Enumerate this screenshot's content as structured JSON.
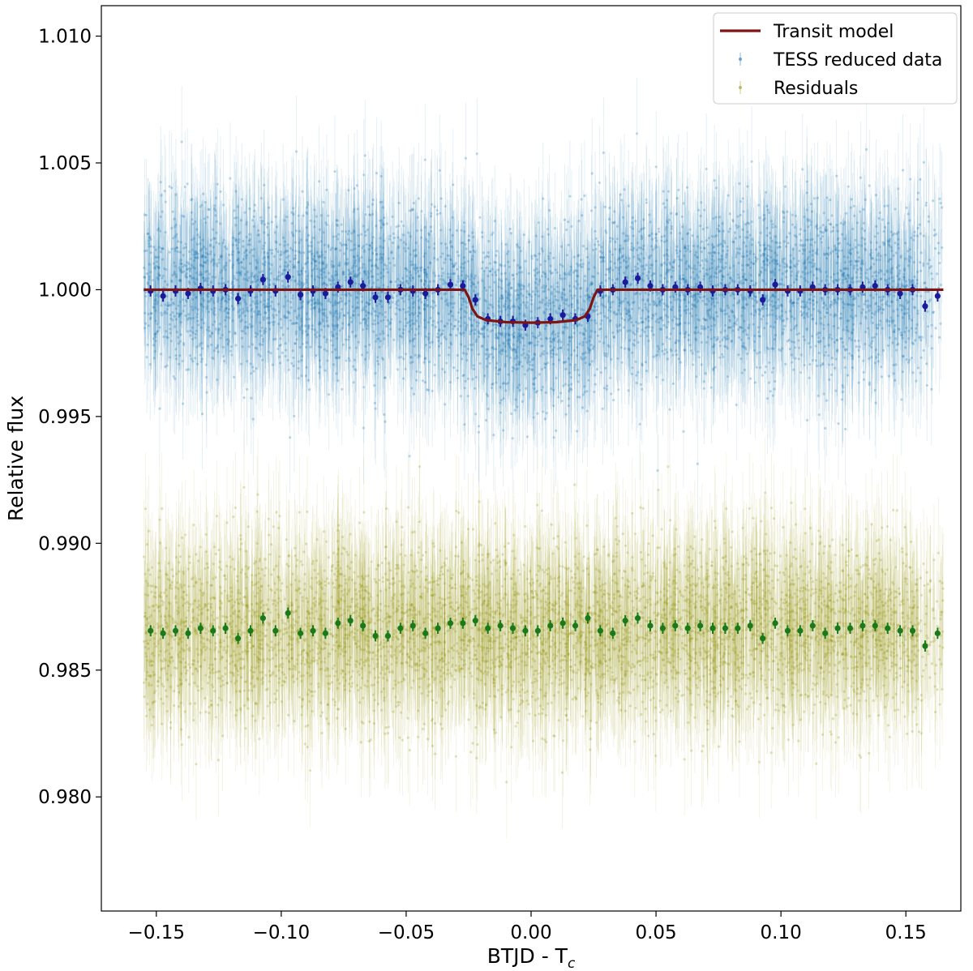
{
  "chart_data": {
    "type": "scatter",
    "title": "",
    "xlabel": "BTJD - T",
    "xlabel_subscript": "c",
    "ylabel": "Relative flux",
    "xlim": [
      -0.172,
      0.172
    ],
    "ylim": [
      0.9755,
      1.0112
    ],
    "grid": false,
    "legend_position": "top-right",
    "x_ticks": [
      -0.15,
      -0.1,
      -0.05,
      0.0,
      0.05,
      0.1,
      0.15
    ],
    "x_tick_labels": [
      "−0.15",
      "−0.10",
      "−0.05",
      "0.00",
      "0.05",
      "0.10",
      "0.15"
    ],
    "y_ticks": [
      0.98,
      0.985,
      0.99,
      0.995,
      1.0,
      1.005,
      1.01
    ],
    "y_tick_labels": [
      "0.980",
      "0.985",
      "0.990",
      "0.995",
      "1.000",
      "1.005",
      "1.010"
    ],
    "legend": [
      {
        "label": "Transit model",
        "kind": "line",
        "color": "#7f1414"
      },
      {
        "label": "TESS reduced data",
        "kind": "errorpoint",
        "color": "#1f77b4"
      },
      {
        "label": "Residuals",
        "kind": "errorpoint",
        "color": "#9a9a1e"
      }
    ],
    "series": [
      {
        "name": "TESS reduced data",
        "color": "#1f77b4",
        "x_range": [
          -0.155,
          0.155
        ],
        "sparse_x_range": [
          0.155,
          0.165
        ],
        "center": 1.0,
        "scatter_sigma": 0.0017,
        "error_bar": 0.0022
      },
      {
        "name": "Residuals",
        "color": "#9a9a1e",
        "x_range": [
          -0.155,
          0.155
        ],
        "sparse_x_range": [
          0.155,
          0.165
        ],
        "center": 0.9866,
        "scatter_sigma": 0.0017,
        "error_bar": 0.0022
      },
      {
        "name": "Binned data",
        "color": "#1a1a9c",
        "x": [
          -0.1523,
          -0.1473,
          -0.1423,
          -0.1373,
          -0.1323,
          -0.1273,
          -0.1223,
          -0.1173,
          -0.1123,
          -0.1073,
          -0.1023,
          -0.0973,
          -0.0923,
          -0.0873,
          -0.0823,
          -0.0773,
          -0.0723,
          -0.0673,
          -0.0623,
          -0.0573,
          -0.0523,
          -0.0473,
          -0.0423,
          -0.0373,
          -0.0323,
          -0.0273,
          -0.0223,
          -0.0173,
          -0.0123,
          -0.0073,
          -0.0023,
          0.0027,
          0.0077,
          0.0127,
          0.0177,
          0.0227,
          0.0277,
          0.0327,
          0.0377,
          0.0427,
          0.0477,
          0.0527,
          0.0577,
          0.0627,
          0.0677,
          0.0727,
          0.0777,
          0.0827,
          0.0877,
          0.0927,
          0.0977,
          0.1027,
          0.1077,
          0.1127,
          0.1177,
          0.1227,
          0.1277,
          0.1327,
          0.1377,
          0.1427,
          0.1477,
          0.1527,
          0.1577,
          0.1627
        ],
        "y": [
          0.99995,
          0.99975,
          0.99995,
          0.99985,
          1.00005,
          0.99995,
          1.0,
          0.99965,
          0.99995,
          1.0004,
          0.99995,
          1.0005,
          0.9998,
          0.99995,
          0.99985,
          1.0001,
          1.0003,
          1.00015,
          0.9997,
          0.9997,
          1.0,
          0.99995,
          0.99985,
          1.0,
          1.0002,
          1.00015,
          0.9996,
          0.99885,
          0.99875,
          0.99875,
          0.9986,
          0.9987,
          0.99885,
          0.999,
          0.99885,
          0.99895,
          0.99995,
          1.0,
          1.0003,
          1.00045,
          1.00015,
          1.0,
          1.0001,
          1.0,
          1.0001,
          0.99995,
          1.0,
          1.0,
          0.99995,
          0.9996,
          1.0002,
          0.99995,
          0.99995,
          1.0001,
          1.0,
          1.0,
          1.0,
          1.0001,
          1.00015,
          1.0,
          0.99985,
          1.0,
          0.99935,
          0.99975
        ],
        "yerr": 0.00022
      },
      {
        "name": "Binned residuals",
        "color": "#1a7a1a",
        "x": [
          -0.1523,
          -0.1473,
          -0.1423,
          -0.1373,
          -0.1323,
          -0.1273,
          -0.1223,
          -0.1173,
          -0.1123,
          -0.1073,
          -0.1023,
          -0.0973,
          -0.0923,
          -0.0873,
          -0.0823,
          -0.0773,
          -0.0723,
          -0.0673,
          -0.0623,
          -0.0573,
          -0.0523,
          -0.0473,
          -0.0423,
          -0.0373,
          -0.0323,
          -0.0273,
          -0.0223,
          -0.0173,
          -0.0123,
          -0.0073,
          -0.0023,
          0.0027,
          0.0077,
          0.0127,
          0.0177,
          0.0227,
          0.0277,
          0.0327,
          0.0377,
          0.0427,
          0.0477,
          0.0527,
          0.0577,
          0.0627,
          0.0677,
          0.0727,
          0.0777,
          0.0827,
          0.0877,
          0.0927,
          0.0977,
          0.1027,
          0.1077,
          0.1127,
          0.1177,
          0.1227,
          0.1277,
          0.1327,
          0.1377,
          0.1427,
          0.1477,
          0.1527,
          0.1577,
          0.1627
        ],
        "y": [
          0.98655,
          0.98645,
          0.98655,
          0.98645,
          0.98665,
          0.98655,
          0.98665,
          0.98625,
          0.98655,
          0.98705,
          0.98655,
          0.98725,
          0.98645,
          0.98655,
          0.98645,
          0.98685,
          0.98695,
          0.98675,
          0.98635,
          0.98635,
          0.98665,
          0.98675,
          0.98645,
          0.98665,
          0.98685,
          0.98685,
          0.98695,
          0.98665,
          0.98675,
          0.98665,
          0.98655,
          0.98655,
          0.98675,
          0.98685,
          0.98675,
          0.98705,
          0.98655,
          0.98645,
          0.98695,
          0.98705,
          0.98675,
          0.98665,
          0.98675,
          0.98665,
          0.98675,
          0.98665,
          0.98665,
          0.98665,
          0.98675,
          0.98625,
          0.98685,
          0.98655,
          0.98655,
          0.98675,
          0.98645,
          0.98665,
          0.98665,
          0.98675,
          0.98675,
          0.98665,
          0.98655,
          0.98655,
          0.98595,
          0.98645
        ],
        "yerr": 0.00022
      },
      {
        "name": "Transit model",
        "color": "#7f1414",
        "x": [
          -0.155,
          -0.0266,
          -0.025,
          -0.0235,
          -0.0215,
          -0.018,
          -0.01,
          0.0,
          0.01,
          0.018,
          0.0215,
          0.0235,
          0.025,
          0.0266,
          0.165
        ],
        "y": [
          1.0,
          1.0,
          0.9997,
          0.99925,
          0.99895,
          0.9988,
          0.99872,
          0.9987,
          0.99872,
          0.9988,
          0.99895,
          0.99925,
          0.9997,
          1.0,
          1.0
        ]
      }
    ]
  }
}
